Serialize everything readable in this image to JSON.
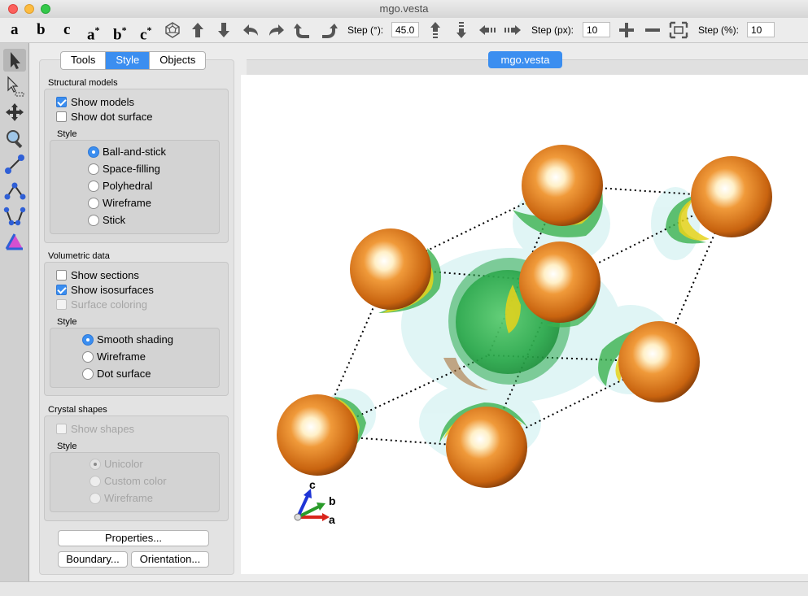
{
  "window": {
    "title": "mgo.vesta"
  },
  "toolbar": {
    "axis_buttons": [
      {
        "label": "a",
        "sup": ""
      },
      {
        "label": "b",
        "sup": ""
      },
      {
        "label": "c",
        "sup": ""
      },
      {
        "label": "a",
        "sup": "*"
      },
      {
        "label": "b",
        "sup": "*"
      },
      {
        "label": "c",
        "sup": "*"
      }
    ],
    "step_deg_label": "Step (°):",
    "step_deg_value": "45.0",
    "step_px_label": "Step (px):",
    "step_px_value": "10",
    "step_pct_label": "Step (%):",
    "step_pct_value": "10",
    "icons": [
      "polyhedron-icon",
      "arrow-up-icon",
      "arrow-down-icon",
      "rotate-left-icon",
      "rotate-right-icon",
      "rotate-ccw-icon",
      "rotate-cw-icon",
      "move-up-icon",
      "move-down-icon",
      "move-left-icon",
      "move-right-icon",
      "zoom-in-icon",
      "zoom-out-icon",
      "fit-icon"
    ]
  },
  "tools": [
    "select-icon",
    "select-region-icon",
    "translate-icon",
    "magnify-icon",
    "distance-icon",
    "angle-icon",
    "dihedral-icon",
    "edit-bond-icon"
  ],
  "tabs": {
    "tools": "Tools",
    "style": "Style",
    "objects": "Objects",
    "selected": "Style"
  },
  "structural_models": {
    "title": "Structural models",
    "show_models": {
      "label": "Show models",
      "checked": true
    },
    "show_dot_surface": {
      "label": "Show dot surface",
      "checked": false
    },
    "style_title": "Style",
    "styles": [
      "Ball-and-stick",
      "Space-filling",
      "Polyhedral",
      "Wireframe",
      "Stick"
    ],
    "selected_style": "Ball-and-stick"
  },
  "volumetric_data": {
    "title": "Volumetric data",
    "show_sections": {
      "label": "Show sections",
      "checked": false
    },
    "show_isosurfaces": {
      "label": "Show isosurfaces",
      "checked": true
    },
    "surface_coloring": {
      "label": "Surface coloring",
      "checked": false,
      "disabled": true
    },
    "style_title": "Style",
    "styles": [
      "Smooth shading",
      "Wireframe",
      "Dot surface"
    ],
    "selected_style": "Smooth shading"
  },
  "crystal_shapes": {
    "title": "Crystal shapes",
    "show_shapes": {
      "label": "Show shapes",
      "checked": false,
      "disabled": true
    },
    "style_title": "Style",
    "styles": [
      "Unicolor",
      "Custom color",
      "Wireframe"
    ],
    "selected_style": "Unicolor"
  },
  "buttons": {
    "properties": "Properties...",
    "boundary": "Boundary...",
    "orientation": "Orientation..."
  },
  "document_tab": "mgo.vesta",
  "axes_labels": {
    "a": "a",
    "b": "b",
    "c": "c"
  },
  "colors": {
    "accent": "#3b8ef0",
    "atom_mg": "#d9731c",
    "isosurface_green": "#2aa84a",
    "isosurface_yellow": "#e6d21a",
    "axis_a": "#d9251c",
    "axis_b": "#2a9b2a",
    "axis_c": "#1f35d6"
  }
}
